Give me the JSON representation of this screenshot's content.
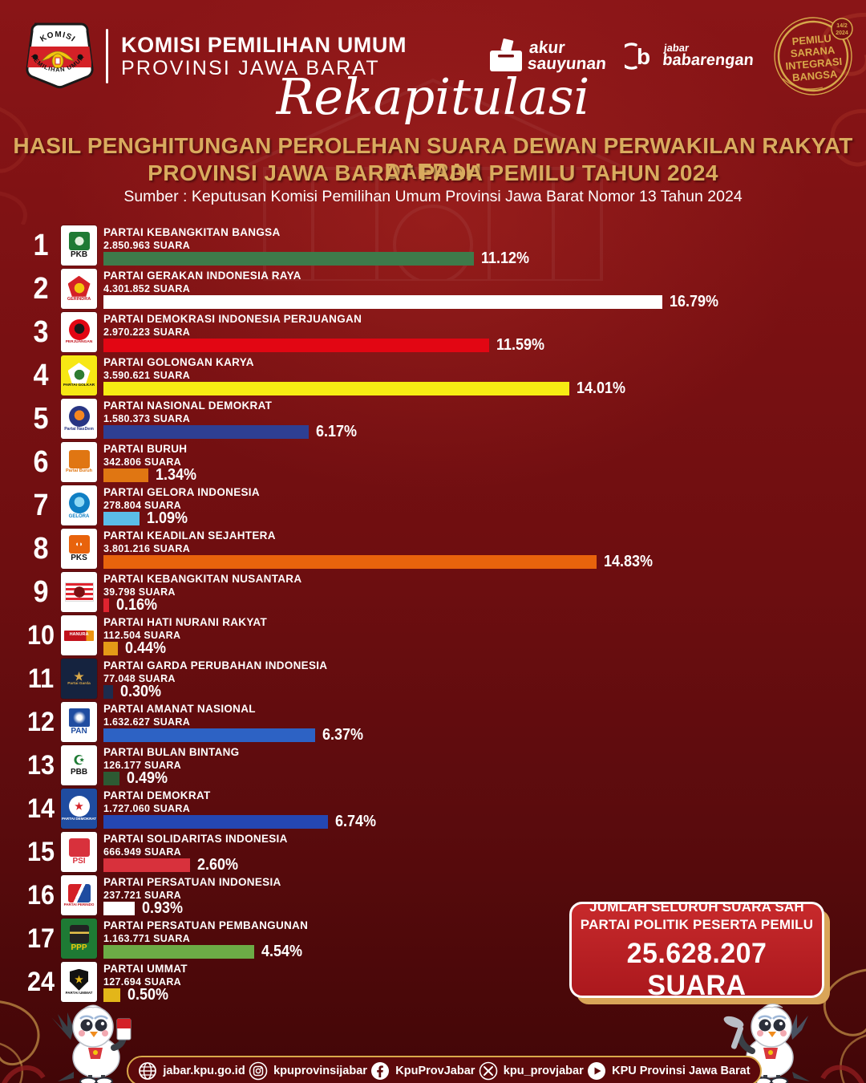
{
  "header": {
    "kpu_logo": {
      "top": "KOMISI",
      "bottom": "PEMILIHAN UMUM"
    },
    "org_line1": "KOMISI PEMILIHAN UMUM",
    "org_line2": "PROVINSI JAWA BARAT",
    "akur": {
      "line1": "akur",
      "line2": "sauyunan"
    },
    "jabar": {
      "line1": "jabar",
      "line2": "babarengan"
    },
    "badge": {
      "l1": "PEMILU",
      "l2": "SARANA",
      "l3": "INTEGRASI",
      "l4": "BANGSA",
      "date1": "14/2",
      "date2": "2024"
    }
  },
  "title": {
    "script": "Rekapitulasi",
    "line1": "HASIL PENGHITUNGAN PEROLEHAN SUARA DEWAN PERWAKILAN RAKYAT DAERAH",
    "line2": "PROVINSI JAWA BARAT PADA PEMILU TAHUN 2024",
    "source": "Sumber : Keputusan Komisi Pemilihan Umum Provinsi Jawa Barat Nomor 13 Tahun 2024"
  },
  "palette": {
    "background": "#7c1113",
    "gold": "#d9ab5e",
    "badge_gold": "#d6a84a",
    "footer_border": "#d9a94a",
    "total_box_red": "#c0252a"
  },
  "chart_data": {
    "type": "bar",
    "orientation": "horizontal",
    "unit": "%",
    "title": "HASIL PENGHITUNGAN PEROLEHAN SUARA DEWAN PERWAKILAN RAKYAT DAERAH PROVINSI JAWA BARAT PADA PEMILU TAHUN 2024",
    "xlim": [
      0,
      17
    ],
    "categories": [
      "PARTAI KEBANGKITAN BANGSA",
      "PARTAI GERAKAN INDONESIA RAYA",
      "PARTAI DEMOKRASI INDONESIA PERJUANGAN",
      "PARTAI GOLONGAN KARYA",
      "PARTAI NASIONAL DEMOKRAT",
      "PARTAI BURUH",
      "PARTAI GELORA INDONESIA",
      "PARTAI KEADILAN SEJAHTERA",
      "PARTAI KEBANGKITAN NUSANTARA",
      "PARTAI HATI NURANI RAKYAT",
      "PARTAI GARDA PERUBAHAN INDONESIA",
      "PARTAI AMANAT NASIONAL",
      "PARTAI BULAN BINTANG",
      "PARTAI DEMOKRAT",
      "PARTAI SOLIDARITAS INDONESIA",
      "PARTAI PERSATUAN INDONESIA",
      "PARTAI PERSATUAN PEMBANGUNAN",
      "PARTAI UMMAT"
    ],
    "values": [
      11.12,
      16.79,
      11.59,
      14.01,
      6.17,
      1.34,
      1.09,
      14.83,
      0.16,
      0.44,
      0.3,
      6.37,
      0.49,
      6.74,
      2.6,
      0.93,
      4.54,
      0.5
    ],
    "rows": [
      {
        "number": "1",
        "party": "PARTAI KEBANGKITAN BANGSA",
        "votes": "2.850.963 SUARA",
        "pct": 11.12,
        "pct_label": "11.12%",
        "bar_color": "#3e7a4a",
        "logo": {
          "bg": "#ffffff",
          "shape": "square",
          "c1": "#1e7a34",
          "c2": "#dff0dc",
          "abbr": "PKB",
          "abbr_color": "#111111",
          "abbr_size": 10
        }
      },
      {
        "number": "2",
        "party": "PARTAI GERAKAN INDONESIA RAYA",
        "votes": "4.301.852 SUARA",
        "pct": 16.79,
        "pct_label": "16.79%",
        "bar_color": "#ffffff",
        "logo": {
          "bg": "#ffffff",
          "shape": "pentagon",
          "c1": "#d42127",
          "c2": "#f3c50d",
          "abbr": "GERINDRA",
          "abbr_color": "#c1121c",
          "abbr_size": 5.5
        }
      },
      {
        "number": "3",
        "party": "PARTAI DEMOKRASI INDONESIA PERJUANGAN",
        "votes": "2.970.223 SUARA",
        "pct": 11.59,
        "pct_label": "11.59%",
        "bar_color": "#e20613",
        "logo": {
          "bg": "#ffffff",
          "shape": "circle",
          "c1": "#e20613",
          "c2": "#1a1a1a",
          "abbr": "PERJUANGAN",
          "abbr_color": "#c1121c",
          "abbr_size": 4.8
        }
      },
      {
        "number": "4",
        "party": "PARTAI GOLONGAN KARYA",
        "votes": "3.590.621 SUARA",
        "pct": 14.01,
        "pct_label": "14.01%",
        "bar_color": "#f7ec13",
        "logo": {
          "bg": "#f7e714",
          "shape": "pentagon",
          "c1": "#ffffff",
          "c2": "#2e7d32",
          "abbr": "PARTAI GOLKAR",
          "abbr_color": "#111111",
          "abbr_size": 4.8
        }
      },
      {
        "number": "5",
        "party": "PARTAI NASIONAL DEMOKRAT",
        "votes": "1.580.373 SUARA",
        "pct": 6.17,
        "pct_label": "6.17%",
        "bar_color": "#2e3f93",
        "logo": {
          "bg": "#ffffff",
          "shape": "circle",
          "c1": "#283583",
          "c2": "#f6861f",
          "abbr": "Partai NasDem",
          "abbr_color": "#283583",
          "abbr_size": 5.2
        }
      },
      {
        "number": "6",
        "party": "PARTAI BURUH",
        "votes": "342.806 SUARA",
        "pct": 1.34,
        "pct_label": "1.34%",
        "bar_color": "#e07612",
        "logo": {
          "bg": "#ffffff",
          "shape": "square",
          "c1": "#e07612",
          "c2": "#e07612",
          "abbr": "Partai Buruh",
          "abbr_color": "#e07612",
          "abbr_size": 5.5
        }
      },
      {
        "number": "7",
        "party": "PARTAI GELORA INDONESIA",
        "votes": "278.804 SUARA",
        "pct": 1.09,
        "pct_label": "1.09%",
        "bar_color": "#5bbde8",
        "logo": {
          "bg": "#ffffff",
          "shape": "circle",
          "c1": "#0f7fc4",
          "c2": "#8fd9f5",
          "abbr": "GELORA",
          "abbr_color": "#0f7fc4",
          "abbr_size": 6
        }
      },
      {
        "number": "8",
        "party": "PARTAI KEADILAN SEJAHTERA",
        "votes": "3.801.216 SUARA",
        "pct": 14.83,
        "pct_label": "14.83%",
        "bar_color": "#e8630c",
        "logo": {
          "bg": "#ffffff",
          "shape": "square",
          "c1": "#e8630c",
          "c2": "#e8630c",
          "char": "◖◗",
          "char_color": "#ffffff",
          "char_size": 9,
          "abbr": "PKS",
          "abbr_color": "#111111",
          "abbr_size": 10
        }
      },
      {
        "number": "9",
        "party": "PARTAI KEBANGKITAN NUSANTARA",
        "votes": "39.798 SUARA",
        "pct": 0.16,
        "pct_label": "0.16%",
        "bar_color": "#e0242f",
        "logo": {
          "bg": "#ffffff",
          "shape": "stripes",
          "c1": "#e0242f",
          "c2": "#7a1012"
        }
      },
      {
        "number": "10",
        "party": "PARTAI HATI NURANI RAKYAT",
        "votes": "112.504 SUARA",
        "pct": 0.44,
        "pct_label": "0.44%",
        "bar_color": "#e49a17",
        "logo": {
          "bg": "#ffffff",
          "shape": "band",
          "c1": "#c1121c",
          "c2": "#ee9412",
          "char": "HANURA",
          "char_color": "#ffffff",
          "char_size": 5.5
        }
      },
      {
        "number": "11",
        "party": "PARTAI GARDA PERUBAHAN INDONESIA",
        "votes": "77.048 SUARA",
        "pct": 0.3,
        "pct_label": "0.30%",
        "bar_color": "#1d2c4d",
        "logo": {
          "bg": "#15233f",
          "shape": "text",
          "char": "★",
          "char_color": "#d9a94a",
          "char_size": 14,
          "abbr": "Partai Garda",
          "abbr_color": "#d9a94a",
          "abbr_size": 4.8
        }
      },
      {
        "number": "12",
        "party": "PARTAI AMANAT NASIONAL",
        "votes": "1.632.627 SUARA",
        "pct": 6.37,
        "pct_label": "6.37%",
        "bar_color": "#2d62c4",
        "logo": {
          "bg": "#ffffff",
          "shape": "burst",
          "c1": "#1f4ca0",
          "c2": "#ffffff",
          "abbr": "PAN",
          "abbr_color": "#1f4ca0",
          "abbr_size": 10
        }
      },
      {
        "number": "13",
        "party": "PARTAI BULAN BINTANG",
        "votes": "126.177 SUARA",
        "pct": 0.49,
        "pct_label": "0.49%",
        "bar_color": "#2d5a33",
        "logo": {
          "bg": "#ffffff",
          "shape": "text",
          "char": "☪",
          "char_color": "#1e7a34",
          "char_size": 16,
          "abbr": "PBB",
          "abbr_color": "#111111",
          "abbr_size": 10
        }
      },
      {
        "number": "14",
        "party": "PARTAI DEMOKRAT",
        "votes": "1.727.060 SUARA",
        "pct": 6.74,
        "pct_label": "6.74%",
        "bar_color": "#2447b2",
        "logo": {
          "bg": "#1f4ca0",
          "shape": "circle",
          "c1": "#ffffff",
          "c2": "#ffffff",
          "char": "★",
          "char_color": "#d42127",
          "char_size": 12,
          "abbr": "PARTAI DEMOKRAT",
          "abbr_color": "#ffffff",
          "abbr_size": 4.5
        }
      },
      {
        "number": "15",
        "party": "PARTAI SOLIDARITAS INDONESIA",
        "votes": "666.949 SUARA",
        "pct": 2.6,
        "pct_label": "2.60%",
        "bar_color": "#d8313c",
        "logo": {
          "bg": "#ffffff",
          "shape": "square",
          "c1": "#d8313c",
          "c2": "#d8313c",
          "abbr": "PSI",
          "abbr_color": "#d8313c",
          "abbr_size": 10
        }
      },
      {
        "number": "16",
        "party": "PARTAI PERSATUAN INDONESIA",
        "votes": "237.721 SUARA",
        "pct": 0.93,
        "pct_label": "0.93%",
        "bar_color": "#ffffff",
        "logo": {
          "bg": "#ffffff",
          "shape": "swoosh",
          "c1": "#d42127",
          "c2": "#1f4ca0",
          "abbr": "PARTAI PERINDO",
          "abbr_color": "#c1121c",
          "abbr_size": 4.5
        }
      },
      {
        "number": "17",
        "party": "PARTAI PERSATUAN PEMBANGUNAN",
        "votes": "1.163.771 SUARA",
        "pct": 4.54,
        "pct_label": "4.54%",
        "bar_color": "#6cab46",
        "logo": {
          "bg": "#1e7a34",
          "shape": "kaaba",
          "c1": "#222222",
          "c2": "#e8c24a",
          "abbr": "PPP",
          "abbr_color": "#f3c50d",
          "abbr_size": 10
        }
      },
      {
        "number": "24",
        "party": "PARTAI UMMAT",
        "votes": "127.694 SUARA",
        "pct": 0.5,
        "pct_label": "0.50%",
        "bar_color": "#e3b619",
        "logo": {
          "bg": "#ffffff",
          "shape": "shield",
          "c1": "#111111",
          "char": "★",
          "char_color": "#e3b619",
          "char_size": 12,
          "abbr": "PARTAI UMMAT",
          "abbr_color": "#111111",
          "abbr_size": 4.5
        }
      }
    ]
  },
  "total_box": {
    "line1": "JUMLAH SELURUH SUARA SAH",
    "line2": "PARTAI POLITIK PESERTA PEMILU",
    "value": "25.628.207 SUARA"
  },
  "footer": {
    "items": [
      {
        "icon": "globe-icon",
        "label": "jabar.kpu.go.id"
      },
      {
        "icon": "instagram-icon",
        "label": "kpuprovinsijabar"
      },
      {
        "icon": "facebook-icon",
        "label": "KpuProvJabar"
      },
      {
        "icon": "x-icon",
        "label": "kpu_provjabar"
      },
      {
        "icon": "youtube-icon",
        "label": "KPU Provinsi Jawa Barat"
      }
    ]
  }
}
